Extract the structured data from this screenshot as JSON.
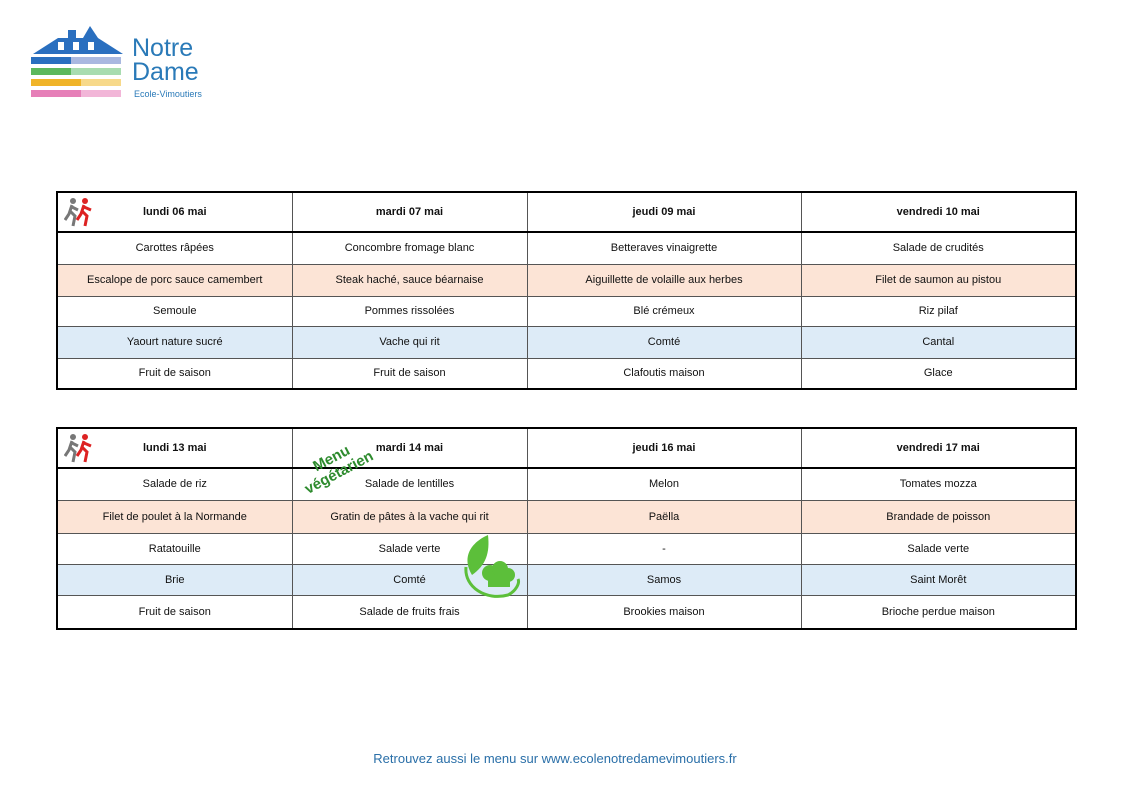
{
  "logo": {
    "line1": "Notre",
    "line2": "Dame",
    "sub": "Ecole-Vimoutiers"
  },
  "weeks": [
    {
      "days": [
        "lundi 06 mai",
        "mardi 07 mai",
        "jeudi 09 mai",
        "vendredi 10 mai"
      ],
      "rows": [
        [
          "Carottes râpées",
          "Concombre fromage blanc",
          "Betteraves vinaigrette",
          "Salade de crudités"
        ],
        [
          "Escalope de porc sauce camembert",
          "Steak haché, sauce béarnaise",
          "Aiguillette de volaille aux herbes",
          "Filet de saumon au pistou"
        ],
        [
          "Semoule",
          "Pommes rissolées",
          "Blé crémeux",
          "Riz pilaf"
        ],
        [
          "Yaourt nature sucré",
          "Vache qui rit",
          "Comté",
          "Cantal"
        ],
        [
          "Fruit de saison",
          "Fruit de saison",
          "Clafoutis maison",
          "Glace"
        ]
      ]
    },
    {
      "days": [
        "lundi 13 mai",
        "mardi 14 mai",
        "jeudi 16 mai",
        "vendredi 17 mai"
      ],
      "rows": [
        [
          "Salade de riz",
          "Salade de lentilles",
          "Melon",
          "Tomates mozza"
        ],
        [
          "Filet de poulet à la Normande",
          "Gratin de pâtes à la vache qui rit",
          "Paëlla",
          "Brandade de poisson"
        ],
        [
          "Ratatouille",
          "Salade verte",
          "-",
          "Salade verte"
        ],
        [
          "Brie",
          "Comté",
          "Samos",
          "Saint Morêt"
        ],
        [
          "Fruit de saison",
          "Salade de fruits frais",
          "Brookies maison",
          "Brioche perdue maison"
        ]
      ]
    }
  ],
  "veg_label": {
    "line1": "Menu",
    "line2": "végétarien"
  },
  "footer": "Retrouvez aussi le menu sur www.ecolenotredamevimoutiers.fr",
  "colors": {
    "peach": "#fce4d6",
    "blue": "#ddebf7",
    "brand": "#2a7ab8",
    "veg": "#2e8b2e"
  }
}
